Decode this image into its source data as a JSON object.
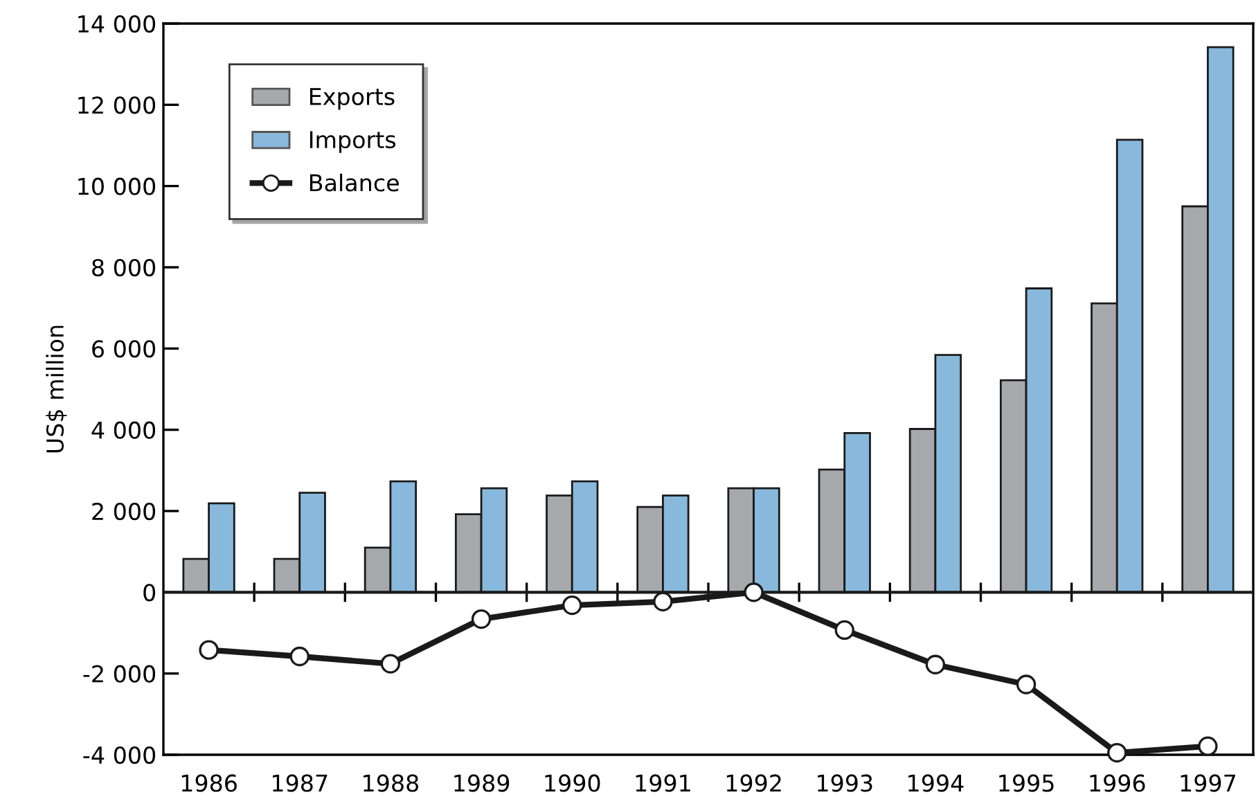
{
  "chart_data": {
    "type": "bar",
    "ylabel": "US$ million",
    "categories": [
      "1986",
      "1987",
      "1988",
      "1989",
      "1990",
      "1991",
      "1992",
      "1993",
      "1994",
      "1995",
      "1996",
      "1997"
    ],
    "series": [
      {
        "name": "Exports",
        "color": "#a7a8ab",
        "values": [
          820,
          820,
          1100,
          1920,
          2380,
          2100,
          2560,
          3020,
          4020,
          5220,
          7110,
          9500
        ]
      },
      {
        "name": "Imports",
        "color": "#88b9dc",
        "values": [
          2190,
          2450,
          2730,
          2560,
          2730,
          2380,
          2560,
          3920,
          5840,
          7480,
          11140,
          13420
        ]
      },
      {
        "name": "Balance",
        "type": "line",
        "color": "#1a1a1a",
        "marker": "circle",
        "values": [
          -1420,
          -1580,
          -1760,
          -660,
          -320,
          -230,
          0,
          -930,
          -1780,
          -2270,
          -3950,
          -3790
        ]
      }
    ],
    "ylim": [
      -4000,
      14000
    ],
    "yticks": [
      {
        "value": -4000,
        "label": "-4 000"
      },
      {
        "value": -2000,
        "label": "-2 000"
      },
      0,
      {
        "value": 2000,
        "label": "2 000"
      },
      {
        "value": 4000,
        "label": "4 000"
      },
      {
        "value": 6000,
        "label": "6 000"
      },
      {
        "value": 8000,
        "label": "8 000"
      },
      {
        "value": 10000,
        "label": "10 000"
      },
      {
        "value": 12000,
        "label": "12 000"
      },
      {
        "value": 14000,
        "label": "14 000"
      }
    ],
    "ref_lines": [
      {
        "axis": "y",
        "value": 0,
        "color": "#1a1a1a"
      }
    ],
    "grid": false,
    "legend": "top left"
  }
}
